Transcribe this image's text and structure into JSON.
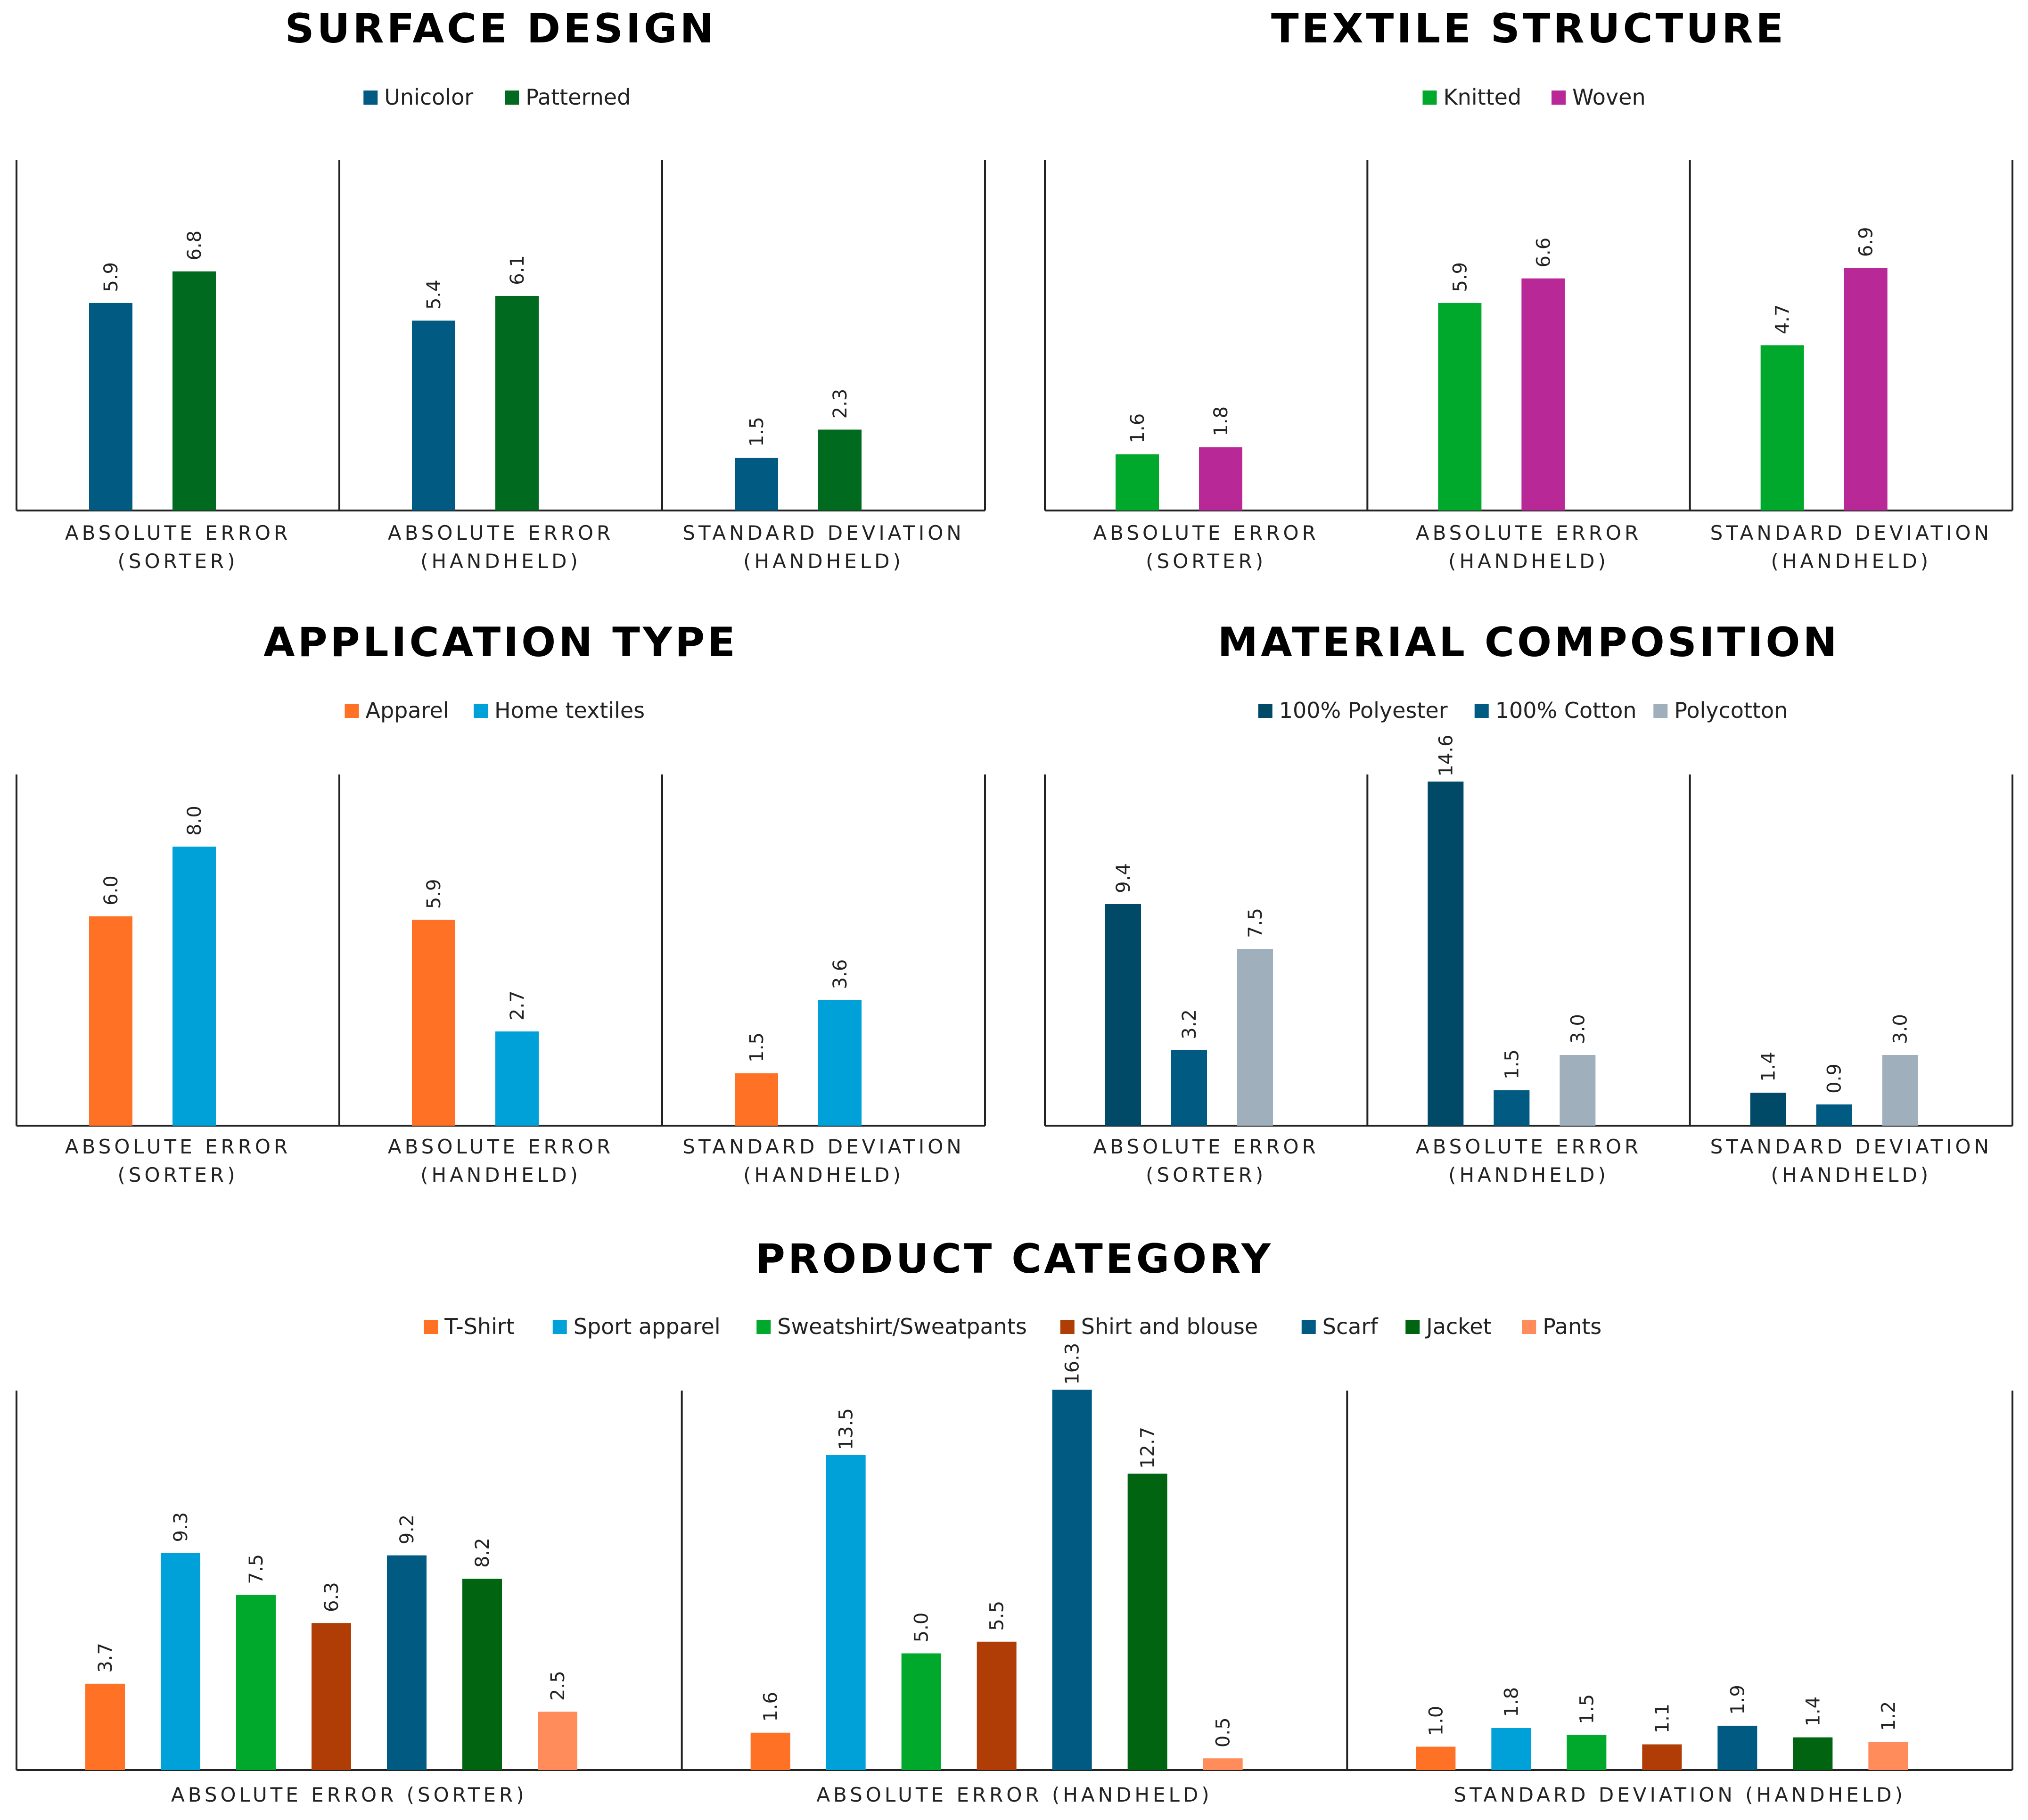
{
  "chart_data": [
    {
      "type": "bar",
      "title": "SURFACE DESIGN",
      "categories": [
        "ABSOLUTE ERROR\n(SORTER)",
        "ABSOLUTE ERROR\n(HANDHELD)",
        "STANDARD DEVIATION\n(HANDHELD)"
      ],
      "series": [
        {
          "name": "Unicolor",
          "color": "#005a82",
          "values": [
            5.9,
            5.4,
            1.5
          ]
        },
        {
          "name": "Patterned",
          "color": "#006a1e",
          "values": [
            6.8,
            6.1,
            2.3
          ]
        }
      ],
      "value_labels": [
        [
          "5.9",
          "5.4",
          "1.5"
        ],
        [
          "6.8",
          "6.1",
          "2.3"
        ]
      ],
      "ylim": [
        0,
        8
      ],
      "grid": false,
      "legend_position": "top"
    },
    {
      "type": "bar",
      "title": "TEXTILE STRUCTURE",
      "categories": [
        "ABSOLUTE ERROR\n(SORTER)",
        "ABSOLUTE ERROR\n(HANDHELD)",
        "STANDARD DEVIATION\n(HANDHELD)"
      ],
      "series": [
        {
          "name": "Knitted",
          "color": "#00a82c",
          "values": [
            1.6,
            5.9,
            4.7
          ]
        },
        {
          "name": "Woven",
          "color": "#b82896",
          "values": [
            1.8,
            6.6,
            6.9
          ]
        }
      ],
      "value_labels": [
        [
          "1.6",
          "5.9",
          "4.7"
        ],
        [
          "1.8",
          "6.6",
          "6.9"
        ]
      ],
      "ylim": [
        0,
        8
      ],
      "grid": false,
      "legend_position": "top"
    },
    {
      "type": "bar",
      "title": "APPLICATION TYPE",
      "categories": [
        "ABSOLUTE ERROR\n(SORTER)",
        "ABSOLUTE ERROR\n(HANDHELD)",
        "STANDARD DEVIATION\n(HANDHELD)"
      ],
      "series": [
        {
          "name": "Apparel",
          "color": "#ff7226",
          "values": [
            6.0,
            5.9,
            1.5
          ]
        },
        {
          "name": "Home textiles",
          "color": "#00a0d8",
          "values": [
            8.0,
            2.7,
            3.6
          ]
        }
      ],
      "value_labels": [
        [
          "6.0",
          "5.9",
          "1.5"
        ],
        [
          "8.0",
          "2.7",
          "3.6"
        ]
      ],
      "ylim": [
        0,
        9
      ],
      "grid": false,
      "legend_position": "top"
    },
    {
      "type": "bar",
      "title": "MATERIAL COMPOSITION",
      "categories": [
        "ABSOLUTE ERROR\n(SORTER)",
        "ABSOLUTE ERROR\n(HANDHELD)",
        "STANDARD DEVIATION\n(HANDHELD)"
      ],
      "series": [
        {
          "name": "100% Polyester",
          "color": "#004a68",
          "values": [
            9.4,
            14.6,
            1.4
          ]
        },
        {
          "name": "100% Cotton",
          "color": "#005a82",
          "values": [
            3.2,
            1.5,
            0.9
          ]
        },
        {
          "name": "Polycotton",
          "color": "#9fb0bc",
          "values": [
            7.5,
            3.0,
            3.0
          ]
        }
      ],
      "value_labels": [
        [
          "9.4",
          "14.6",
          "1.4"
        ],
        [
          "3.2",
          "1.5",
          "0.9"
        ],
        [
          "7.5",
          "3.0",
          "3.0"
        ]
      ],
      "ylim": [
        0,
        16
      ],
      "grid": false,
      "legend_position": "top"
    },
    {
      "type": "bar",
      "title": "PRODUCT CATEGORY",
      "categories": [
        "ABSOLUTE ERROR (SORTER)",
        "ABSOLUTE ERROR (HANDHELD)",
        "STANDARD DEVIATION (HANDHELD)"
      ],
      "series": [
        {
          "name": "T-Shirt",
          "color": "#ff7226",
          "values": [
            3.7,
            1.6,
            1.0
          ]
        },
        {
          "name": "Sport apparel",
          "color": "#00a0d8",
          "values": [
            9.3,
            13.5,
            1.8
          ]
        },
        {
          "name": "Sweatshirt/Sweatpants",
          "color": "#00a82c",
          "values": [
            7.5,
            5.0,
            1.5
          ]
        },
        {
          "name": "Shirt and blouse",
          "color": "#b03c06",
          "values": [
            6.3,
            5.5,
            1.1
          ]
        },
        {
          "name": "Scarf",
          "color": "#005a82",
          "values": [
            9.2,
            16.3,
            1.9
          ]
        },
        {
          "name": "Jacket",
          "color": "#006410",
          "values": [
            8.2,
            12.7,
            1.4
          ]
        },
        {
          "name": "Pants",
          "color": "#ff8c5a",
          "values": [
            2.5,
            0.5,
            1.2
          ]
        }
      ],
      "value_labels": [
        [
          "3.7",
          "1.6",
          "1.0"
        ],
        [
          "9.3",
          "13.5",
          "1.8"
        ],
        [
          "7.5",
          "5.0",
          "1.5"
        ],
        [
          "6.3",
          "5.5",
          "1.1"
        ],
        [
          "9.2",
          "16.3",
          "1.9"
        ],
        [
          "8.2",
          "12.7",
          "1.4"
        ],
        [
          "2.5",
          "0.5",
          "1.2"
        ]
      ],
      "ylim": [
        0,
        18
      ],
      "grid": false,
      "legend_position": "top"
    }
  ]
}
